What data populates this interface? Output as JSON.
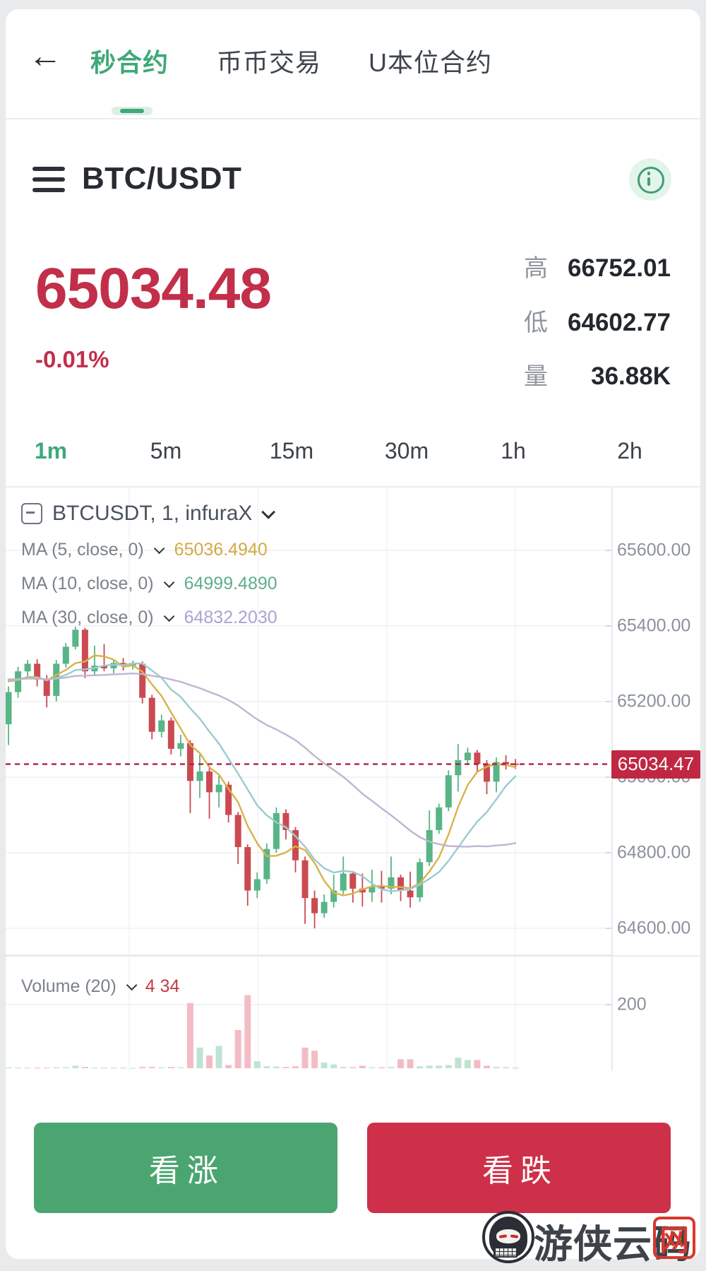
{
  "nav": {
    "back_icon": "←",
    "tabs": [
      {
        "label": "秒合约"
      },
      {
        "label": "币币交易"
      },
      {
        "label": "U本位合约"
      }
    ],
    "active_index": 0
  },
  "symbol_bar": {
    "title": "BTC/USDT"
  },
  "ticker": {
    "price": "65034.48",
    "change": "-0.01%",
    "stats": [
      {
        "label": "高",
        "value": "66752.01"
      },
      {
        "label": "低",
        "value": "64602.77"
      },
      {
        "label": "量",
        "value": "36.88K"
      }
    ]
  },
  "timeframes": {
    "items": [
      "1m",
      "5m",
      "15m",
      "30m",
      "1h",
      "2h"
    ],
    "active_index": 0
  },
  "chart_legend": {
    "symbol_line": "BTCUSDT, 1, infuraX",
    "ma_lines": [
      {
        "label": "MA (5, close, 0)",
        "value": "65036.4940",
        "color": "#d3a944"
      },
      {
        "label": "MA (10, close, 0)",
        "value": "64999.4890",
        "color": "#5fae8c"
      },
      {
        "label": "MA (30, close, 0)",
        "value": "64832.2030",
        "color": "#a9a3d6"
      }
    ],
    "volume_label": "Volume (20)",
    "volume_value": "4 34"
  },
  "chart_data": {
    "type": "candlestick",
    "symbol": "BTCUSDT",
    "interval": "1",
    "source": "infuraX",
    "last_price": 65034.47,
    "last_price_label": "65034.47",
    "y_range": [
      64530,
      65766
    ],
    "grid": true,
    "y_ticks": [
      {
        "v": 65600,
        "label": "65600.00"
      },
      {
        "v": 65400,
        "label": "65400.00"
      },
      {
        "v": 65200,
        "label": "65200.00"
      },
      {
        "v": 65000,
        "label": "65000.00"
      },
      {
        "v": 64800,
        "label": "64800.00"
      },
      {
        "v": 64600,
        "label": "64600.00"
      }
    ],
    "volume_ticks": [
      {
        "v": 200,
        "label": "200"
      }
    ],
    "ma_series": [
      {
        "name": "MA5",
        "period": 5,
        "color": "#d9b24a"
      },
      {
        "name": "MA10",
        "period": 10,
        "color": "#9ccad2"
      },
      {
        "name": "MA30",
        "period": 30,
        "color": "#bcb7d2"
      }
    ],
    "seed_close": 65260,
    "colors": {
      "up": "#57b586",
      "down": "#cb4a52",
      "vol_up": "#bfe3d2",
      "vol_down": "#f3bcc5",
      "price_line": "#b02140",
      "grid": "#eef0f3",
      "grid_v": "#f3f4f7",
      "axis": "#e8eaee"
    },
    "candles": [
      [
        65140,
        65240,
        65085,
        65225,
        3
      ],
      [
        65225,
        65292,
        65210,
        65280,
        2
      ],
      [
        65280,
        65310,
        65262,
        65300,
        2
      ],
      [
        65300,
        65312,
        65240,
        65258,
        2
      ],
      [
        65258,
        65270,
        65185,
        65215,
        2
      ],
      [
        65215,
        65310,
        65200,
        65300,
        3
      ],
      [
        65300,
        65355,
        65290,
        65345,
        3
      ],
      [
        65345,
        65398,
        65338,
        65390,
        8
      ],
      [
        65390,
        65395,
        65262,
        65280,
        4
      ],
      [
        65280,
        65348,
        65268,
        65295,
        2
      ],
      [
        65295,
        65352,
        65280,
        65288,
        2
      ],
      [
        65288,
        65312,
        65275,
        65302,
        2
      ],
      [
        65302,
        65315,
        65282,
        65295,
        2
      ],
      [
        65295,
        65308,
        65285,
        65300,
        1
      ],
      [
        65300,
        65306,
        65195,
        65210,
        4
      ],
      [
        65210,
        65218,
        65100,
        65120,
        4
      ],
      [
        65120,
        65165,
        65105,
        65150,
        3
      ],
      [
        65150,
        65158,
        65060,
        65075,
        4
      ],
      [
        65075,
        65112,
        65055,
        65090,
        3
      ],
      [
        65090,
        65098,
        64905,
        64990,
        205
      ],
      [
        64990,
        65060,
        64945,
        65015,
        65
      ],
      [
        65015,
        65030,
        64890,
        64960,
        40
      ],
      [
        64960,
        65005,
        64920,
        64980,
        70
      ],
      [
        64980,
        64988,
        64880,
        64900,
        10
      ],
      [
        64900,
        64908,
        64770,
        64815,
        120
      ],
      [
        64815,
        64822,
        64660,
        64700,
        230
      ],
      [
        64700,
        64748,
        64680,
        64730,
        22
      ],
      [
        64730,
        64825,
        64718,
        64810,
        6
      ],
      [
        64810,
        64920,
        64800,
        64905,
        5
      ],
      [
        64905,
        64915,
        64835,
        64860,
        4
      ],
      [
        64860,
        64868,
        64748,
        64780,
        6
      ],
      [
        64780,
        64790,
        64612,
        64680,
        65
      ],
      [
        64680,
        64700,
        64600,
        64640,
        55
      ],
      [
        64640,
        64690,
        64628,
        64670,
        18
      ],
      [
        64670,
        64742,
        64655,
        64700,
        12
      ],
      [
        64700,
        64790,
        64690,
        64745,
        4
      ],
      [
        64745,
        64752,
        64668,
        64705,
        3
      ],
      [
        64705,
        64745,
        64658,
        64695,
        8
      ],
      [
        64695,
        64755,
        64670,
        64710,
        3
      ],
      [
        64710,
        64752,
        64668,
        64705,
        3
      ],
      [
        64705,
        64790,
        64690,
        64735,
        4
      ],
      [
        64735,
        64742,
        64672,
        64700,
        28
      ],
      [
        64700,
        64750,
        64655,
        64682,
        28
      ],
      [
        64682,
        64785,
        64670,
        64775,
        6
      ],
      [
        64775,
        64912,
        64765,
        64860,
        8
      ],
      [
        64860,
        64930,
        64850,
        64920,
        8
      ],
      [
        64920,
        65018,
        64910,
        65005,
        10
      ],
      [
        65005,
        65088,
        64962,
        65045,
        33
      ],
      [
        65045,
        65078,
        65032,
        65065,
        26
      ],
      [
        65065,
        65072,
        65012,
        65035,
        26
      ],
      [
        65035,
        65045,
        64955,
        64988,
        8
      ],
      [
        64988,
        65052,
        64960,
        65040,
        4
      ],
      [
        65040,
        65058,
        65020,
        65034,
        3
      ],
      [
        65036,
        65048,
        65022,
        65034.47,
        2
      ]
    ]
  },
  "actions": {
    "up_label": "看涨",
    "down_label": "看跌",
    "up_color": "#4ba571",
    "down_color": "#ce3049"
  },
  "watermark": {
    "name": "游侠云码",
    "suffix": "网"
  }
}
